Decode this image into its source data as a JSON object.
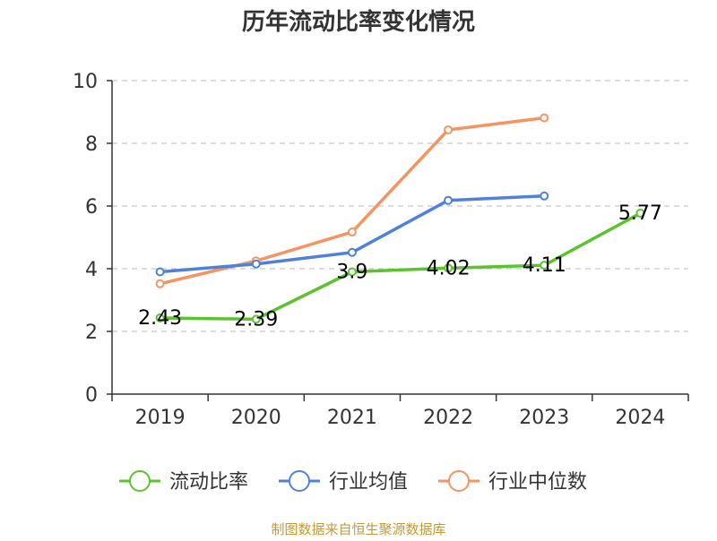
{
  "chart_data": {
    "type": "line",
    "title": "历年流动比率变化情况",
    "categories": [
      "2019",
      "2020",
      "2021",
      "2022",
      "2023",
      "2024"
    ],
    "ylim": [
      0,
      10
    ],
    "yticks": [
      0,
      2,
      4,
      6,
      8,
      10
    ],
    "grid": true,
    "legend_position": "bottom",
    "series": [
      {
        "name": "流动比率",
        "color": "#5cc22e",
        "values": [
          2.43,
          2.39,
          3.9,
          4.02,
          4.11,
          5.77
        ],
        "labels": [
          "2.43",
          "2.39",
          "3.9",
          "4.02",
          "4.11",
          "5.77"
        ]
      },
      {
        "name": "行业均值",
        "color": "#4f81db",
        "values": [
          3.9,
          4.15,
          4.52,
          6.18,
          6.32,
          null
        ]
      },
      {
        "name": "行业中位数",
        "color": "#f59460",
        "values": [
          3.52,
          4.25,
          5.17,
          8.43,
          8.81,
          null
        ]
      }
    ],
    "source": "制图数据来自恒生聚源数据库"
  }
}
